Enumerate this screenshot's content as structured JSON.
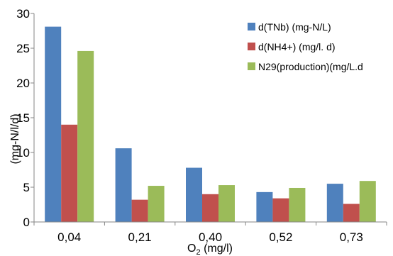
{
  "chart_data": {
    "type": "bar",
    "categories": [
      "0,04",
      "0,21",
      "0,40",
      "0,52",
      "0,73"
    ],
    "series": [
      {
        "name": "d(TNb) (mg-N/L)",
        "values": [
          28.1,
          10.6,
          7.8,
          4.3,
          5.5
        ],
        "color": "#4f81bd"
      },
      {
        "name": "d(NH4+) (mg/l. d)",
        "values": [
          14.0,
          3.2,
          4.0,
          3.4,
          2.6
        ],
        "color": "#c0504d"
      },
      {
        "name": "N29(production)(mg/L.d",
        "values": [
          24.6,
          5.2,
          5.3,
          4.9,
          5.9
        ],
        "color": "#9bbb59"
      }
    ],
    "yticks": [
      "0",
      "5",
      "10",
      "15",
      "20",
      "25",
      "30"
    ],
    "ylim": [
      0,
      30
    ],
    "xlabel": {
      "main": "O",
      "sub": "2",
      "rest": " (mg/l)"
    },
    "ylabel": "(mg-N/l/d)",
    "title": "",
    "grid": false,
    "legend_position": "top-right"
  }
}
